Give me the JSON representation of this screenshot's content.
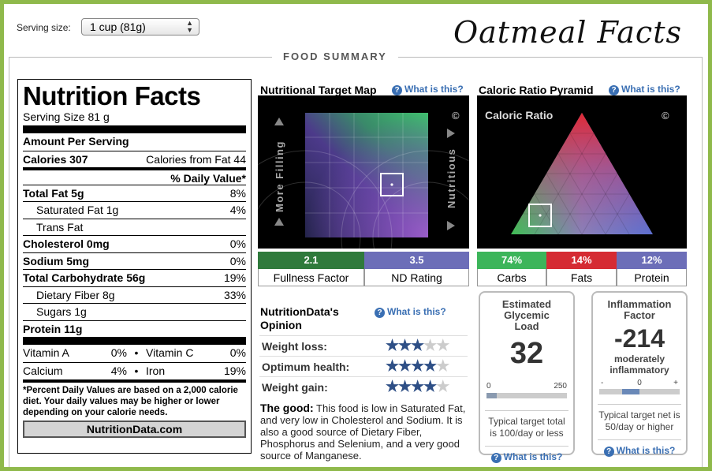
{
  "serving": {
    "label": "Serving size:",
    "selected": "1 cup (81g)"
  },
  "page_title": "Oatmeal Facts",
  "summary_title": "FOOD SUMMARY",
  "nutrition_facts": {
    "title": "Nutrition Facts",
    "serving_size": "Serving Size  81 g",
    "amount_per_serving": "Amount Per Serving",
    "calories": "Calories 307",
    "calories_from_fat": "Calories from Fat 44",
    "daily_value_header": "% Daily Value*",
    "rows": [
      {
        "label": "Total Fat 5g",
        "dv": "8%",
        "bold": true,
        "indent": false
      },
      {
        "label": "Saturated Fat 1g",
        "dv": "4%",
        "bold": false,
        "indent": true
      },
      {
        "label": "Trans Fat",
        "dv": "",
        "bold": false,
        "indent": true
      },
      {
        "label": "Cholesterol 0mg",
        "dv": "0%",
        "bold": true,
        "indent": false
      },
      {
        "label": "Sodium 5mg",
        "dv": "0%",
        "bold": true,
        "indent": false
      },
      {
        "label": "Total Carbohydrate 56g",
        "dv": "19%",
        "bold": true,
        "indent": false
      },
      {
        "label": "Dietary Fiber 8g",
        "dv": "33%",
        "bold": false,
        "indent": true
      },
      {
        "label": "Sugars 1g",
        "dv": "",
        "bold": false,
        "indent": true
      },
      {
        "label": "Protein 11g",
        "dv": "",
        "bold": true,
        "indent": false
      }
    ],
    "vitamins": [
      {
        "left": "Vitamin A",
        "left_dv": "0%",
        "right": "Vitamin C",
        "right_dv": "0%"
      },
      {
        "left": "Calcium",
        "left_dv": "4%",
        "right": "Iron",
        "right_dv": "19%"
      }
    ],
    "note": "*Percent Daily Values are based on a 2,000 calorie diet. Your daily values may be higher or lower depending on your calorie needs.",
    "footer": "NutritionData.com"
  },
  "target_map": {
    "title": "Nutritional Target Map",
    "help": "What is this?",
    "left_axis": "More Filling",
    "right_axis": "Nutritious",
    "copyright": "©",
    "scores": [
      {
        "value": "2.1",
        "label": "Fullness Factor",
        "color": "#2f7a3c"
      },
      {
        "value": "3.5",
        "label": "ND Rating",
        "color": "#6c6eb8"
      }
    ]
  },
  "pyramid": {
    "title": "Caloric Ratio Pyramid",
    "help": "What is this?",
    "inner_title": "Caloric Ratio",
    "copyright": "©",
    "scores": [
      {
        "value": "74%",
        "label": "Carbs",
        "color": "#3cb55a"
      },
      {
        "value": "14%",
        "label": "Fats",
        "color": "#d52b33"
      },
      {
        "value": "12%",
        "label": "Protein",
        "color": "#6c6eb8"
      }
    ]
  },
  "opinion": {
    "title": "NutritionData's Opinion",
    "help": "What is this?",
    "rows": [
      {
        "label": "Weight loss:",
        "stars": 2.5
      },
      {
        "label": "Optimum health:",
        "stars": 3.5
      },
      {
        "label": "Weight gain:",
        "stars": 3.5
      }
    ],
    "good_label": "The good:",
    "good_text": "This food is low in Saturated Fat, and very low in Cholesterol and Sodium. It is also a good source of Dietary Fiber, Phosphorus and Selenium, and a very good source of Manganese."
  },
  "glycemic": {
    "title": "Estimated Glycemic Load",
    "value": "32",
    "scale_min": "0",
    "scale_max": "250",
    "level": 0.128,
    "target": "Typical target total is 100/day or less",
    "help": "What is this?"
  },
  "inflammation": {
    "title": "Inflammation Factor",
    "value": "-214",
    "desc": "moderately inflammatory",
    "scale_min": "-",
    "scale_mid": "0",
    "scale_max": "+",
    "target": "Typical target net is 50/day or higher",
    "help": "What is this?"
  }
}
